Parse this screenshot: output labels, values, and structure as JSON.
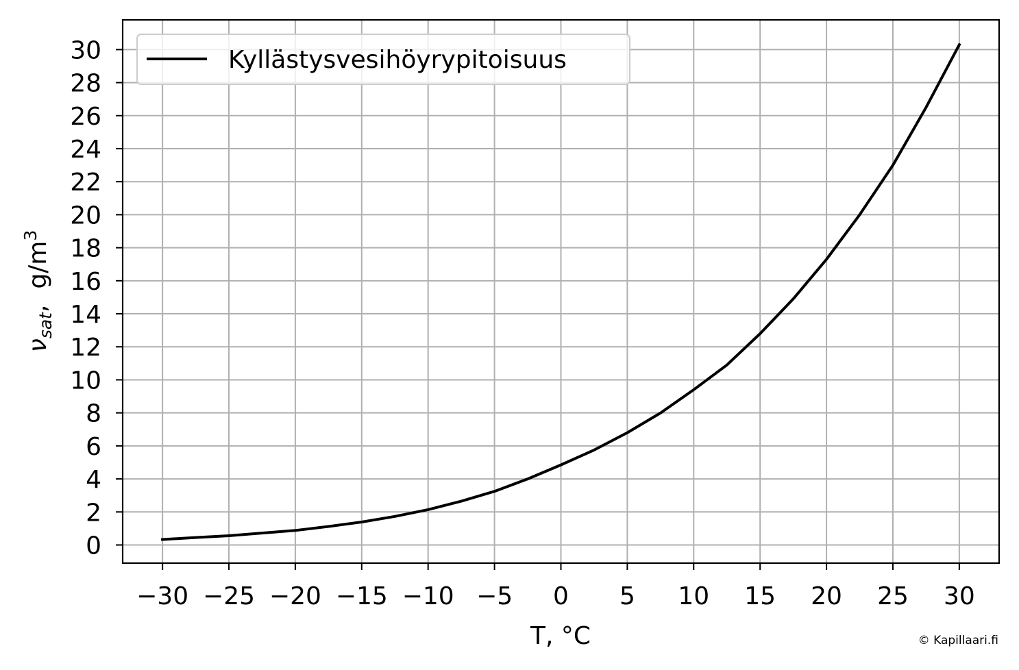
{
  "chart_data": {
    "type": "line",
    "xlabel": "T, °C",
    "ylabel": {
      "symbol": "ν",
      "subscript": "sat",
      "unit": ",  g/m",
      "superscript": "3"
    },
    "xlim": [
      -33,
      33
    ],
    "ylim": [
      -1.1,
      31.8
    ],
    "xticks": [
      -30,
      -25,
      -20,
      -15,
      -10,
      -5,
      0,
      5,
      10,
      15,
      20,
      25,
      30
    ],
    "xtick_labels": [
      "−30",
      "−25",
      "−20",
      "−15",
      "−10",
      "−5",
      "0",
      "5",
      "10",
      "15",
      "20",
      "25",
      "30"
    ],
    "yticks": [
      0,
      2,
      4,
      6,
      8,
      10,
      12,
      14,
      16,
      18,
      20,
      22,
      24,
      26,
      28,
      30
    ],
    "ytick_labels": [
      "0",
      "2",
      "4",
      "6",
      "8",
      "10",
      "12",
      "14",
      "16",
      "18",
      "20",
      "22",
      "24",
      "26",
      "28",
      "30"
    ],
    "grid": true,
    "legend_position": "top-left",
    "series": [
      {
        "name": "Kyllästysvesihöyrypitoisuus",
        "color": "#000000",
        "x": [
          -30,
          -27.5,
          -25,
          -22.5,
          -20,
          -17.5,
          -15,
          -12.5,
          -10,
          -7.5,
          -5,
          -2.5,
          0,
          2.5,
          5,
          7.5,
          10,
          12.5,
          15,
          17.5,
          20,
          22.5,
          25,
          27.5,
          30
        ],
        "y": [
          0.33,
          0.45,
          0.56,
          0.72,
          0.88,
          1.12,
          1.39,
          1.73,
          2.14,
          2.65,
          3.25,
          4.0,
          4.85,
          5.75,
          6.8,
          7.99,
          9.4,
          10.9,
          12.8,
          14.9,
          17.3,
          20.0,
          23.0,
          26.5,
          30.3
        ]
      }
    ]
  },
  "credit": "© Kapillaari.fi"
}
